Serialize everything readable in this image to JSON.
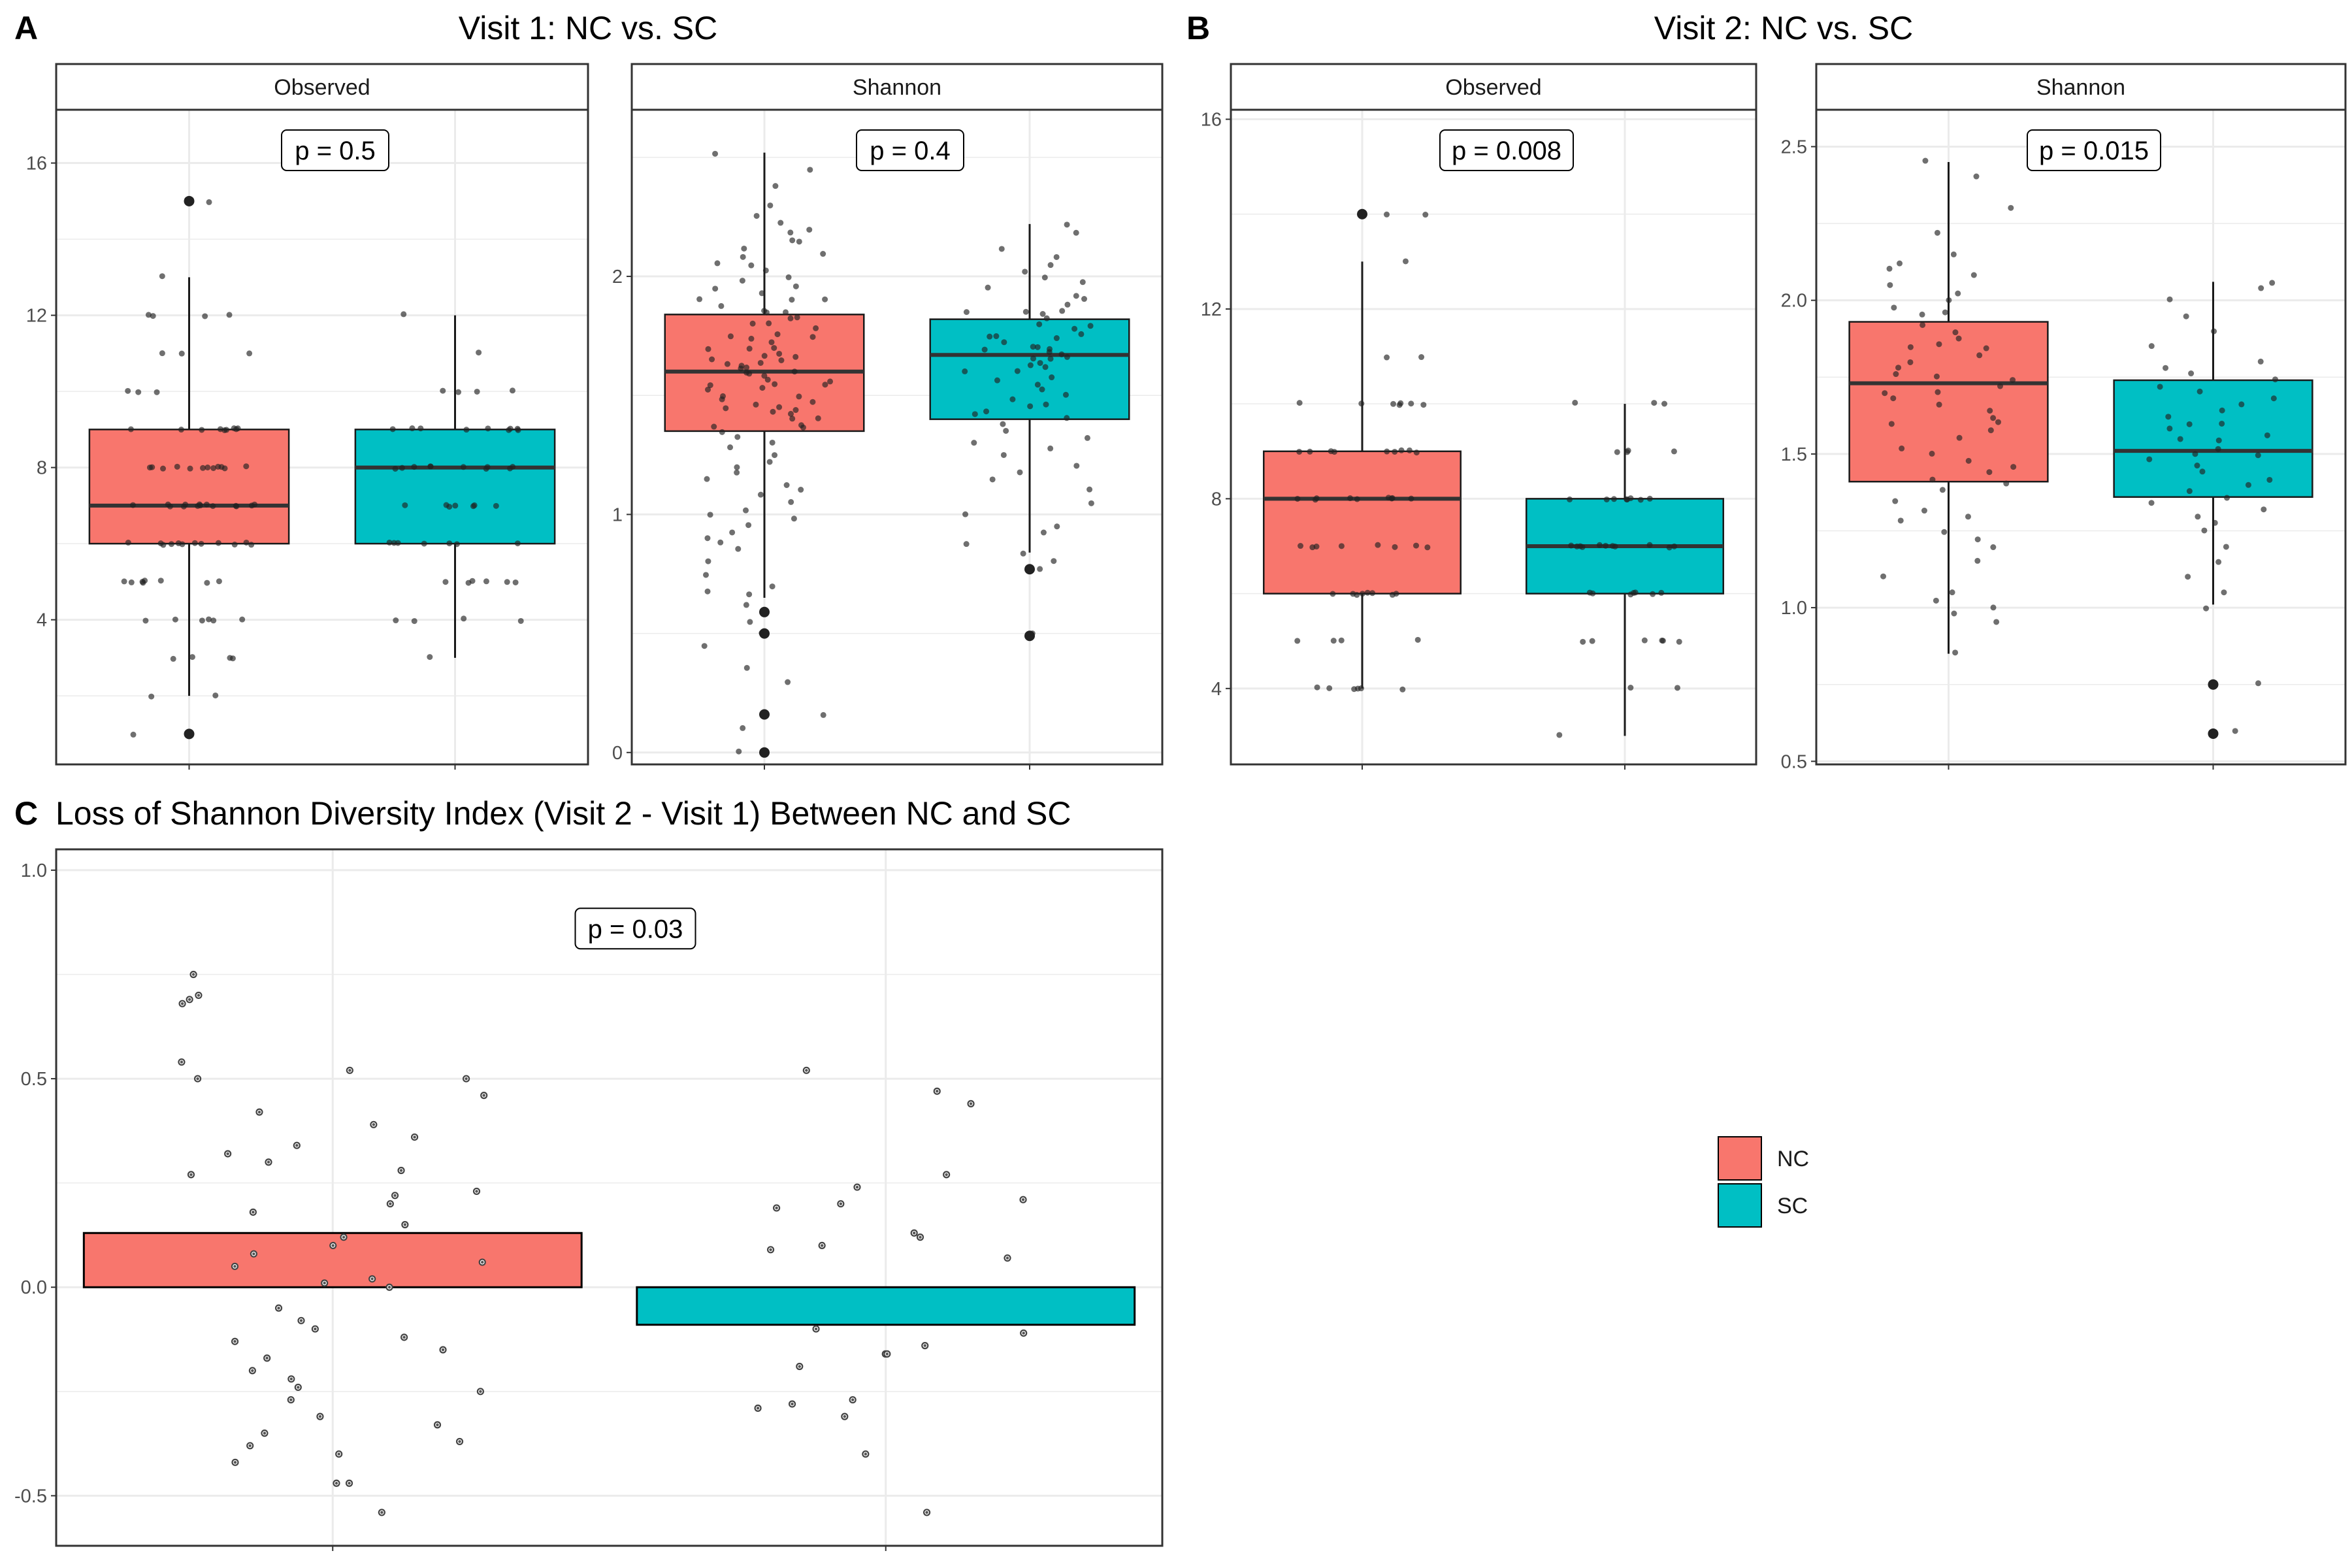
{
  "colors": {
    "NC": "#F8766D",
    "SC": "#00BFC4",
    "point": "#222222",
    "grid": "#ebebeb",
    "border": "#333333"
  },
  "legend": {
    "placement": "right",
    "entries": [
      {
        "name": "NC",
        "color": "#F8766D"
      },
      {
        "name": "SC",
        "color": "#00BFC4"
      }
    ]
  },
  "chart_data": [
    {
      "id": "A",
      "type": "box",
      "panel_label": "A",
      "title": "Visit 1: NC vs. SC",
      "facets": [
        {
          "strip": "Observed",
          "ylim": [
            0.2,
            17.4
          ],
          "yticks": [
            4,
            8,
            12,
            16
          ],
          "ytick_labels": [
            "4",
            "8",
            "12",
            "16"
          ],
          "pvalue": "p = 0.5",
          "groups": [
            {
              "name": "NC",
              "q1": 6,
              "median": 7,
              "q3": 9,
              "whisker_low": 2,
              "whisker_high": 13,
              "outliers": [
                15,
                1
              ],
              "points": [
                15,
                13,
                12,
                12,
                12,
                12,
                11,
                11,
                11,
                10,
                10,
                10,
                9,
                9,
                9,
                9,
                9,
                9,
                9,
                9,
                9,
                8,
                8,
                8,
                8,
                8,
                8,
                8,
                8,
                8,
                8,
                8,
                8,
                7,
                7,
                7,
                7,
                7,
                7,
                7,
                7,
                7,
                7,
                7,
                7,
                7,
                7,
                6,
                6,
                6,
                6,
                6,
                6,
                6,
                6,
                6,
                6,
                6,
                6,
                5,
                5,
                5,
                5,
                5,
                5,
                5,
                5,
                4,
                4,
                4,
                4,
                4,
                4,
                3,
                3,
                3,
                3,
                2,
                2,
                1,
                15
              ]
            },
            {
              "name": "SC",
              "q1": 6,
              "median": 8,
              "q3": 9,
              "whisker_low": 3,
              "whisker_high": 12,
              "outliers": [],
              "points": [
                12,
                11,
                10,
                10,
                10,
                10,
                9,
                9,
                9,
                9,
                9,
                9,
                9,
                9,
                9,
                8,
                8,
                8,
                8,
                8,
                8,
                8,
                8,
                8,
                8,
                7,
                7,
                7,
                7,
                7,
                7,
                7,
                6,
                6,
                6,
                6,
                6,
                6,
                6,
                5,
                5,
                5,
                5,
                5,
                5,
                4,
                4,
                4,
                4,
                3
              ]
            }
          ]
        },
        {
          "strip": "Shannon",
          "ylim": [
            -0.05,
            2.7
          ],
          "yticks": [
            0,
            1,
            2
          ],
          "ytick_labels": [
            "0",
            "1",
            "2"
          ],
          "pvalue": "p = 0.4",
          "groups": [
            {
              "name": "NC",
              "q1": 1.35,
              "median": 1.6,
              "q3": 1.84,
              "whisker_low": 0.65,
              "whisker_high": 2.52,
              "outliers": [
                0.59,
                0.5,
                0.16,
                0.0
              ],
              "points": [
                2.52,
                2.45,
                2.38,
                2.3,
                2.25,
                2.22,
                2.2,
                2.18,
                2.15,
                2.12,
                2.1,
                2.08,
                2.05,
                2.02,
                2.0,
                1.98,
                1.96,
                1.95,
                1.93,
                1.9,
                1.9,
                1.88,
                1.86,
                1.85,
                1.83,
                1.82,
                1.8,
                1.8,
                1.78,
                1.76,
                1.75,
                1.74,
                1.72,
                1.7,
                1.7,
                1.68,
                1.67,
                1.66,
                1.65,
                1.64,
                1.63,
                1.62,
                1.61,
                1.6,
                1.6,
                1.59,
                1.58,
                1.57,
                1.56,
                1.55,
                1.54,
                1.53,
                1.52,
                1.5,
                1.5,
                1.48,
                1.47,
                1.46,
                1.45,
                1.44,
                1.43,
                1.42,
                1.4,
                1.4,
                1.38,
                1.37,
                1.36,
                1.35,
                1.33,
                1.3,
                1.28,
                1.25,
                1.22,
                1.2,
                1.18,
                1.15,
                1.12,
                1.1,
                1.08,
                1.05,
                1.02,
                1.0,
                0.98,
                0.95,
                0.92,
                0.9,
                0.88,
                0.85,
                0.8,
                0.75,
                0.7,
                0.68,
                0.66,
                0.62,
                0.55,
                0.5,
                0.45,
                0.35,
                0.3,
                0.16,
                0.1,
                0.0,
                1.7,
                1.65,
                1.9,
                2.15,
                1.55,
                1.45,
                1.75,
                1.85,
                2.05,
                1.62
              ]
            },
            {
              "name": "SC",
              "q1": 1.4,
              "median": 1.67,
              "q3": 1.82,
              "whisker_low": 0.84,
              "whisker_high": 2.22,
              "outliers": [
                0.77,
                0.49
              ],
              "points": [
                2.22,
                2.18,
                2.12,
                2.08,
                2.05,
                2.02,
                2.0,
                1.98,
                1.95,
                1.92,
                1.9,
                1.88,
                1.86,
                1.85,
                1.84,
                1.82,
                1.8,
                1.79,
                1.78,
                1.76,
                1.75,
                1.74,
                1.72,
                1.7,
                1.7,
                1.69,
                1.68,
                1.67,
                1.66,
                1.65,
                1.64,
                1.63,
                1.62,
                1.6,
                1.58,
                1.56,
                1.55,
                1.53,
                1.5,
                1.48,
                1.46,
                1.45,
                1.43,
                1.42,
                1.4,
                1.38,
                1.35,
                1.32,
                1.3,
                1.28,
                1.25,
                1.2,
                1.18,
                1.15,
                1.1,
                1.05,
                1.0,
                0.95,
                0.92,
                0.88,
                0.84,
                0.8,
                0.77,
                0.5,
                1.7,
                1.6,
                1.75,
                1.85,
                1.65
              ]
            }
          ]
        }
      ]
    },
    {
      "id": "B",
      "type": "box",
      "panel_label": "B",
      "title": "Visit 2: NC vs. SC",
      "facets": [
        {
          "strip": "Observed",
          "ylim": [
            2.4,
            16.2
          ],
          "yticks": [
            4,
            8,
            12,
            16
          ],
          "ytick_labels": [
            "4",
            "8",
            "12",
            "16"
          ],
          "pvalue": "p = 0.008",
          "groups": [
            {
              "name": "NC",
              "q1": 6,
              "median": 8,
              "q3": 9,
              "whisker_low": 4,
              "whisker_high": 13,
              "outliers": [
                14
              ],
              "points": [
                14,
                14,
                13,
                11,
                11,
                10,
                10,
                10,
                10,
                10,
                10,
                9,
                9,
                9,
                9,
                9,
                9,
                9,
                9,
                8,
                8,
                8,
                8,
                8,
                8,
                8,
                8,
                8,
                7,
                7,
                7,
                7,
                7,
                7,
                7,
                7,
                6,
                6,
                6,
                6,
                6,
                6,
                6,
                6,
                5,
                5,
                5,
                5,
                4,
                4,
                4,
                4,
                4,
                4,
                10,
                9
              ]
            },
            {
              "name": "SC",
              "q1": 6,
              "median": 7,
              "q3": 8,
              "whisker_low": 3,
              "whisker_high": 10,
              "outliers": [],
              "points": [
                10,
                10,
                10,
                9,
                9,
                9,
                9,
                8,
                8,
                8,
                8,
                8,
                8,
                8,
                7,
                7,
                7,
                7,
                7,
                7,
                7,
                7,
                7,
                7,
                6,
                6,
                6,
                6,
                6,
                6,
                6,
                5,
                5,
                5,
                5,
                5,
                5,
                4,
                4,
                3,
                8,
                7
              ]
            }
          ]
        },
        {
          "strip": "Shannon",
          "ylim": [
            0.49,
            2.62
          ],
          "yticks": [
            0.5,
            1.0,
            1.5,
            2.0,
            2.5
          ],
          "ytick_labels": [
            "0.5",
            "1.0",
            "1.5",
            "2.0",
            "2.5"
          ],
          "pvalue": "p = 0.015",
          "groups": [
            {
              "name": "NC",
              "q1": 1.41,
              "median": 1.73,
              "q3": 1.93,
              "whisker_low": 0.85,
              "whisker_high": 2.45,
              "outliers": [],
              "points": [
                2.45,
                2.4,
                2.3,
                2.22,
                2.15,
                2.12,
                2.1,
                2.08,
                2.05,
                2.02,
                2.0,
                1.98,
                1.95,
                1.92,
                1.9,
                1.88,
                1.86,
                1.84,
                1.82,
                1.8,
                1.78,
                1.76,
                1.74,
                1.72,
                1.7,
                1.68,
                1.66,
                1.64,
                1.62,
                1.6,
                1.58,
                1.55,
                1.52,
                1.5,
                1.48,
                1.46,
                1.44,
                1.42,
                1.4,
                1.38,
                1.35,
                1.32,
                1.3,
                1.28,
                1.25,
                1.22,
                1.2,
                1.15,
                1.1,
                1.05,
                1.02,
                1.0,
                0.98,
                0.95,
                0.85,
                1.85,
                1.7,
                1.96,
                1.6,
                1.75
              ]
            },
            {
              "name": "SC",
              "q1": 1.36,
              "median": 1.51,
              "q3": 1.74,
              "whisker_low": 1.01,
              "whisker_high": 2.06,
              "outliers": [
                0.75,
                0.59
              ],
              "points": [
                2.06,
                2.04,
                2.0,
                1.95,
                1.9,
                1.85,
                1.8,
                1.78,
                1.76,
                1.74,
                1.72,
                1.7,
                1.68,
                1.66,
                1.64,
                1.62,
                1.6,
                1.58,
                1.56,
                1.55,
                1.54,
                1.52,
                1.5,
                1.48,
                1.46,
                1.44,
                1.42,
                1.4,
                1.38,
                1.36,
                1.34,
                1.32,
                1.3,
                1.28,
                1.25,
                1.2,
                1.15,
                1.1,
                1.05,
                1.0,
                0.75,
                0.6,
                1.6,
                1.5
              ]
            }
          ]
        }
      ]
    },
    {
      "id": "C",
      "type": "bar",
      "panel_label": "C",
      "title": "Loss of Shannon Diversity Index (Visit 2 - Visit 1) Between NC and SC",
      "ylim": [
        -0.62,
        1.05
      ],
      "yticks": [
        -0.5,
        0.0,
        0.5,
        1.0
      ],
      "ytick_labels": [
        "-0.5",
        "0.0",
        "0.5",
        "1.0"
      ],
      "pvalue": "p = 0.03",
      "categories": [
        "NC",
        "SC"
      ],
      "values": [
        0.13,
        -0.09
      ],
      "points": [
        [
          0.75,
          0.7,
          0.69,
          0.68,
          0.54,
          0.52,
          0.5,
          0.5,
          0.46,
          0.42,
          0.39,
          0.36,
          0.34,
          0.32,
          0.3,
          0.28,
          0.27,
          0.23,
          0.22,
          0.2,
          0.18,
          0.15,
          0.12,
          0.1,
          0.08,
          0.06,
          0.05,
          0.02,
          0.01,
          0.0,
          -0.05,
          -0.08,
          -0.1,
          -0.12,
          -0.13,
          -0.15,
          -0.17,
          -0.2,
          -0.22,
          -0.24,
          -0.25,
          -0.27,
          -0.31,
          -0.33,
          -0.35,
          -0.37,
          -0.38,
          -0.4,
          -0.42,
          -0.47,
          -0.47,
          -0.54
        ],
        [
          0.52,
          0.47,
          0.44,
          0.27,
          0.24,
          0.21,
          0.2,
          0.19,
          0.13,
          0.12,
          0.1,
          0.09,
          0.07,
          -0.1,
          -0.11,
          -0.14,
          -0.16,
          -0.16,
          -0.19,
          -0.27,
          -0.28,
          -0.29,
          -0.31,
          -0.4,
          -0.54
        ]
      ]
    }
  ]
}
